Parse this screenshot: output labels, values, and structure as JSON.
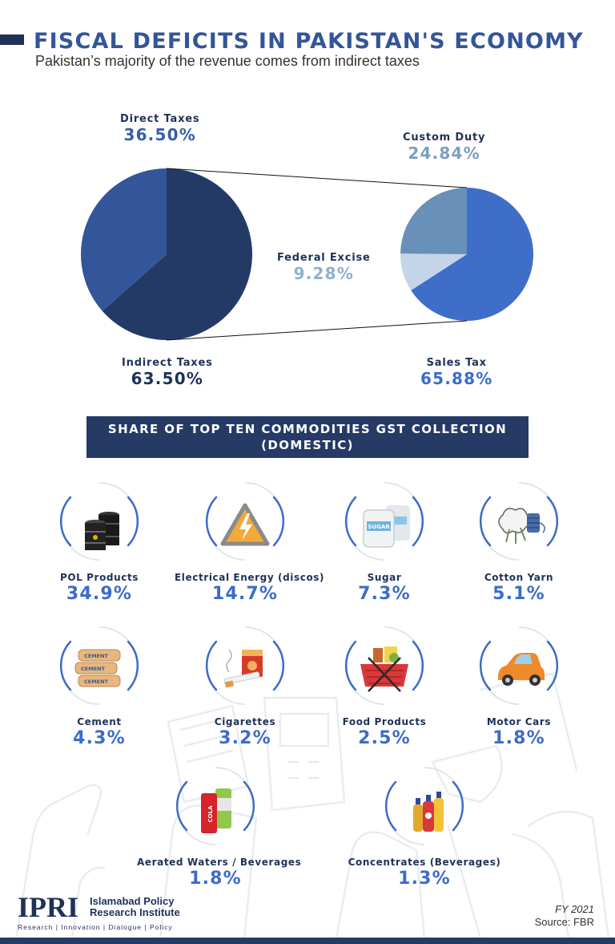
{
  "header": {
    "title": "FISCAL DEFICITS IN PAKISTAN'S ECONOMY",
    "subtitle": "Pakistan’s majority of the revenue comes from indirect taxes"
  },
  "chart_data": [
    {
      "type": "pie",
      "title": "",
      "slices": [
        {
          "label": "Direct Taxes",
          "display": "36.50%",
          "value": 36.5,
          "color": "#33559a"
        },
        {
          "label": "Indirect Taxes",
          "display": "63.50%",
          "value": 63.5,
          "color": "#243a66"
        }
      ]
    },
    {
      "type": "pie",
      "title": "",
      "slices": [
        {
          "label": "Sales Tax",
          "display": "65.88%",
          "value": 65.88,
          "color": "#3e6ec8"
        },
        {
          "label": "Federal Excise",
          "display": "9.28%",
          "value": 9.28,
          "color": "#c4d5e9"
        },
        {
          "label": "Custom Duty",
          "display": "24.84%",
          "value": 24.84,
          "color": "#6890b8"
        }
      ]
    }
  ],
  "colors": {
    "direct_value": "#3560a8",
    "indirect_value": "#1f3158",
    "custom_value": "#7aa0c0",
    "excise_value": "#8fb0cf",
    "sales_value": "#3c6cc8",
    "accent": "#3c6cc8"
  },
  "gst_section": {
    "heading_line1": "SHARE OF TOP TEN COMMODITIES GST COLLECTION",
    "heading_line2": "(DOMESTIC)",
    "commodities": [
      {
        "name": "POL Products",
        "value": "34.9%",
        "icon": "oil-barrels-icon"
      },
      {
        "name": "Electrical Energy (discos)",
        "value": "14.7%",
        "icon": "high-voltage-icon"
      },
      {
        "name": "Sugar",
        "value": "7.3%",
        "icon": "sugar-bags-icon"
      },
      {
        "name": "Cotton Yarn",
        "value": "5.1%",
        "icon": "cotton-yarn-icon"
      },
      {
        "name": "Cement",
        "value": "4.3%",
        "icon": "cement-bags-icon"
      },
      {
        "name": "Cigarettes",
        "value": "3.2%",
        "icon": "cigarette-icon"
      },
      {
        "name": "Food Products",
        "value": "2.5%",
        "icon": "food-basket-icon"
      },
      {
        "name": "Motor Cars",
        "value": "1.8%",
        "icon": "car-icon"
      },
      {
        "name": "Aerated Waters / Beverages",
        "value": "1.8%",
        "icon": "soda-cans-icon"
      },
      {
        "name": "Concentrates (Beverages)",
        "value": "1.3%",
        "icon": "bottles-icon"
      }
    ],
    "bag_label": "CEMENT",
    "sugar_label": "SUGAR",
    "cola_label": "COLA"
  },
  "footer": {
    "logo_mark": "IPRI",
    "logo_line1": "Islamabad Policy",
    "logo_line2": "Research Institute",
    "tagline": "Research | Innovation | Dialogue | Policy",
    "fiscal_year": "FY 2021",
    "source": "Source: FBR"
  }
}
